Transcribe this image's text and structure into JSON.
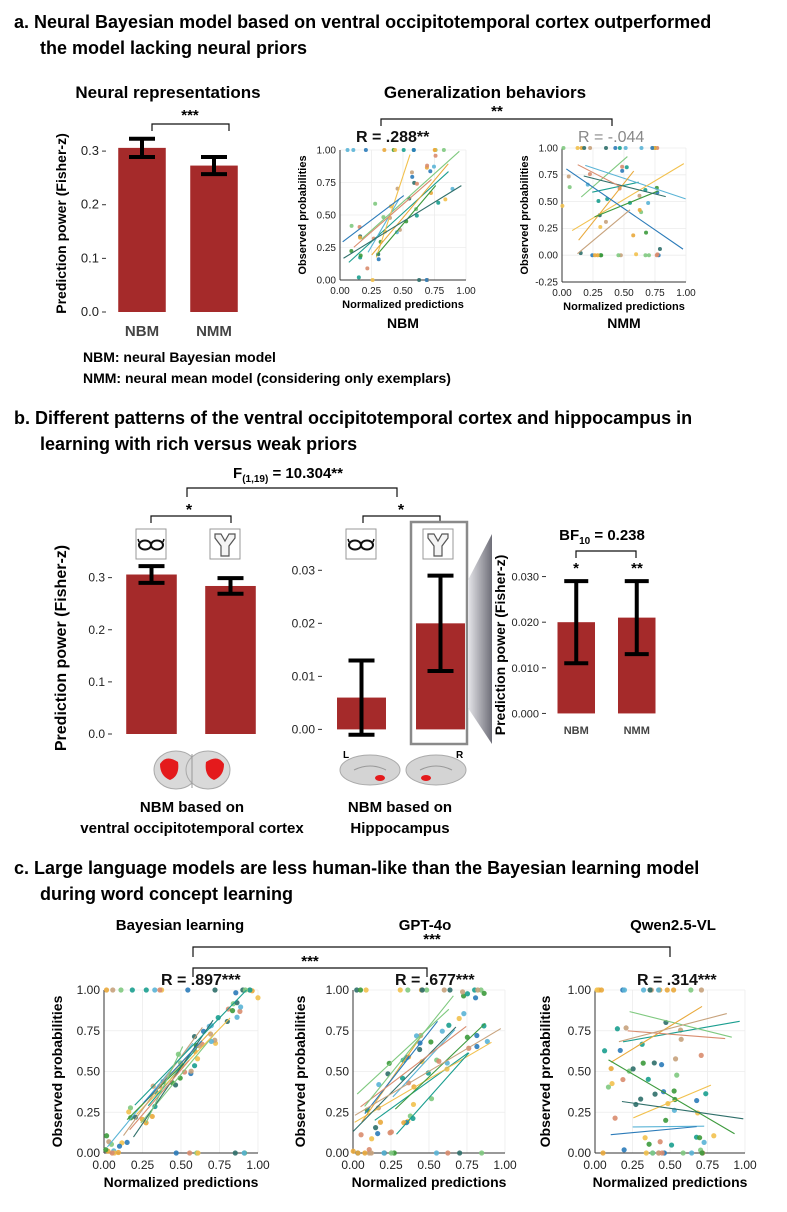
{
  "colors": {
    "bar": "#A52A2A",
    "text": "#111111",
    "gray_text": "#888888",
    "series_palette": [
      "#1a9e8f",
      "#2b7bb9",
      "#e9a93b",
      "#7fc97f",
      "#d98c6e",
      "#3c9a3c",
      "#5ab4d6",
      "#c7a27c",
      "#2f6f6a",
      "#f2c14e"
    ]
  },
  "sections": {
    "a": {
      "title_line1": "a. Neural Bayesian model based on ventral occipitotemporal cortex outperformed",
      "title_line2": "the model lacking neural priors",
      "left_title": "Neural representations",
      "right_title": "Generalization behaviors",
      "sig_bar": "***",
      "sig_scatter": "**",
      "legend_nbm": "NBM: neural Bayesian model",
      "legend_nmm": "NMM: neural mean model (considering only exemplars)"
    },
    "b": {
      "title_line1": "b. Different patterns of the ventral occipitotemporal cortex and hippocampus in",
      "title_line2": "learning with rich versus weak priors",
      "f_label": "F(1,19) = 10.304**",
      "sig_left": "*",
      "sig_mid": "*",
      "bf_label": "BF10 = 0.238",
      "star_nbm": "*",
      "star_nmm": "**",
      "caption_left_line1": "NBM based on",
      "caption_left_line2": "ventral occipitotemporal cortex",
      "caption_mid_line1": "NBM based on",
      "caption_mid_line2": "Hippocampus",
      "brain_l": "L",
      "brain_r": "R"
    },
    "c": {
      "title_line1": "c. Large language models are less human-like than the Bayesian learning model",
      "title_line2": "during word concept learning",
      "sig_top": "***",
      "sig_second": "***"
    }
  },
  "chart_data": [
    {
      "id": "a-bar",
      "type": "bar",
      "categories": [
        "NBM",
        "NMM"
      ],
      "values": [
        0.306,
        0.273
      ],
      "errors": [
        0.017,
        0.016
      ],
      "ylabel": "Prediction power (Fisher-z)",
      "yticks": [
        "0.0",
        "0.1",
        "0.2",
        "0.3"
      ],
      "ylim": [
        0,
        0.33
      ]
    },
    {
      "id": "a-nbm",
      "type": "scatter",
      "title": "NBM",
      "r_label": "R = .288**",
      "xlabel": "Normalized predictions",
      "ylabel": "Observed probabilities",
      "xticks": [
        "0.00",
        "0.25",
        "0.50",
        "0.75",
        "1.00"
      ],
      "yticks": [
        "0.00",
        "0.25",
        "0.50",
        "0.75",
        "1.00"
      ],
      "xlim": [
        0,
        1
      ],
      "ylim": [
        0,
        1
      ]
    },
    {
      "id": "a-nmm",
      "type": "scatter",
      "title": "NMM",
      "r_label": "R = -.044",
      "xlabel": "Normalized predictions",
      "ylabel": "Observed probabilities",
      "xticks": [
        "0.00",
        "0.25",
        "0.50",
        "0.75",
        "1.00"
      ],
      "yticks": [
        "-0.25",
        "0.00",
        "0.25",
        "0.50",
        "0.75",
        "1.00"
      ],
      "xlim": [
        0,
        1
      ],
      "ylim": [
        -0.25,
        1
      ]
    },
    {
      "id": "b-vot",
      "type": "bar",
      "categories": [
        "glasses",
        "icon"
      ],
      "values": [
        0.306,
        0.284
      ],
      "errors": [
        0.016,
        0.015
      ],
      "ylabel": "Prediction power (Fisher-z)",
      "yticks": [
        "0.0",
        "0.1",
        "0.2",
        "0.3"
      ],
      "ylim": [
        0,
        0.33
      ]
    },
    {
      "id": "b-hip",
      "type": "bar",
      "categories": [
        "glasses",
        "icon"
      ],
      "values": [
        0.006,
        0.02
      ],
      "errors": [
        0.007,
        0.009
      ],
      "yticks": [
        "0.00",
        "0.01",
        "0.02",
        "0.03"
      ],
      "ylim": [
        -0.002,
        0.031
      ]
    },
    {
      "id": "b-zoom",
      "type": "bar",
      "categories": [
        "NBM",
        "NMM"
      ],
      "values": [
        0.02,
        0.021
      ],
      "errors": [
        0.009,
        0.008
      ],
      "ylabel": "Prediction power (Fisher-z)",
      "yticks": [
        "0.000",
        "0.010",
        "0.020",
        "0.030"
      ],
      "ylim": [
        -0.001,
        0.031
      ]
    },
    {
      "id": "c-bayes",
      "type": "scatter",
      "title": "Bayesian learning",
      "r_label": "R = .897***",
      "xlabel": "Normalized predictions",
      "ylabel": "Observed probabilities",
      "xticks": [
        "0.00",
        "0.25",
        "0.50",
        "0.75",
        "1.00"
      ],
      "yticks": [
        "0.00",
        "0.25",
        "0.50",
        "0.75",
        "1.00"
      ],
      "xlim": [
        0,
        1
      ],
      "ylim": [
        0,
        1
      ]
    },
    {
      "id": "c-gpt",
      "type": "scatter",
      "title": "GPT-4o",
      "r_label": "R = .677***",
      "xlabel": "Normalized predictions",
      "ylabel": "Observed probabilities",
      "xticks": [
        "0.00",
        "0.25",
        "0.50",
        "0.75",
        "1.00"
      ],
      "yticks": [
        "0.00",
        "0.25",
        "0.50",
        "0.75",
        "1.00"
      ],
      "xlim": [
        0,
        1
      ],
      "ylim": [
        0,
        1
      ]
    },
    {
      "id": "c-qwen",
      "type": "scatter",
      "title": "Qwen2.5-VL",
      "r_label": "R = .314***",
      "xlabel": "Normalized predictions",
      "ylabel": "Observed probabilities",
      "xticks": [
        "0.00",
        "0.25",
        "0.50",
        "0.75",
        "1.00"
      ],
      "yticks": [
        "0.00",
        "0.25",
        "0.50",
        "0.75",
        "1.00"
      ],
      "xlim": [
        0,
        1
      ],
      "ylim": [
        0,
        1
      ]
    }
  ]
}
